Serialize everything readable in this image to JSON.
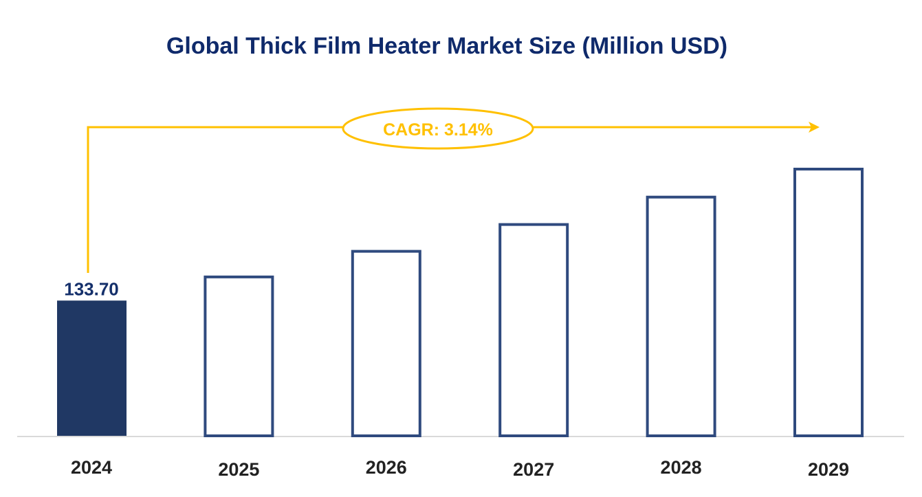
{
  "chart_data": {
    "type": "bar",
    "title": "Global Thick Film Heater Market Size (Million USD)",
    "categories": [
      "2024",
      "2025",
      "2026",
      "2027",
      "2028",
      "2029"
    ],
    "values": [
      133.7,
      137.9,
      142.2,
      146.7,
      151.3,
      156.0
    ],
    "data_labels": [
      "133.70",
      "",
      "",
      "",
      "",
      ""
    ],
    "xlabel": "",
    "ylabel": "",
    "ylim": [
      111,
      156
    ],
    "grid": false,
    "annotation": "CAGR: 3.14%",
    "colors": {
      "highlight": "#203864",
      "outline": "#2f4a7e",
      "accent": "#FFC000",
      "title": "#0f2a6b"
    }
  }
}
